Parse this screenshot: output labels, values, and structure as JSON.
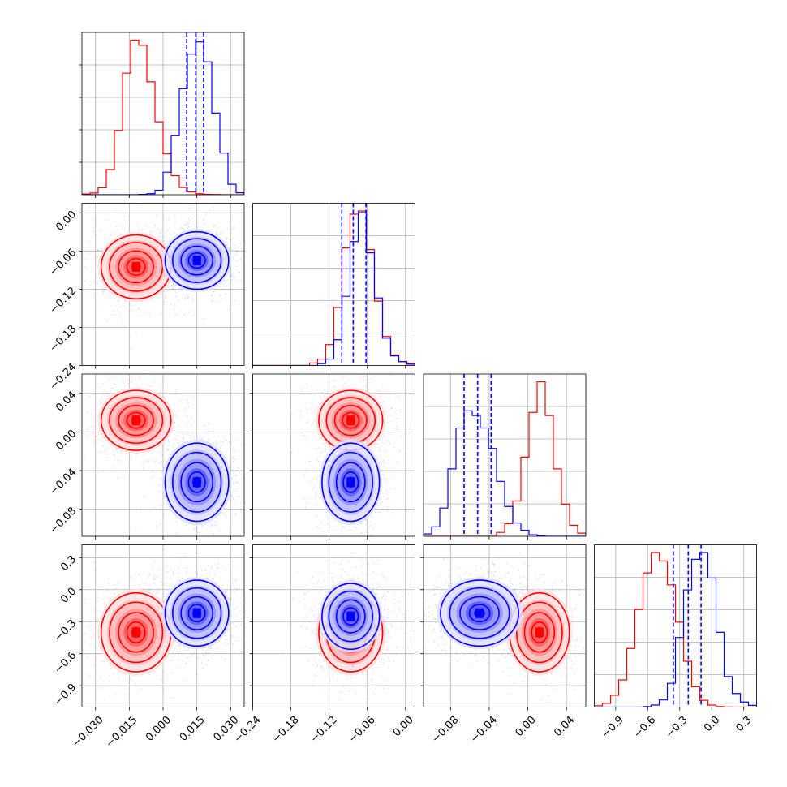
{
  "chart_data": {
    "type": "corner",
    "series": [
      {
        "color": "#ff0000",
        "histograms": [
          [
            4,
            10,
            40,
            145,
            370,
            700,
            890,
            860,
            650,
            420,
            235,
            110,
            42,
            16,
            6,
            2,
            1,
            0,
            0,
            0
          ],
          [
            0,
            0,
            0,
            0,
            0,
            0,
            0,
            15,
            40,
            130,
            360,
            730,
            940,
            960,
            720,
            400,
            180,
            65,
            25,
            12
          ],
          [
            0,
            0,
            0,
            0,
            0,
            0,
            0,
            0,
            0,
            25,
            80,
            225,
            505,
            790,
            985,
            770,
            430,
            205,
            70,
            20
          ],
          [
            8,
            22,
            70,
            160,
            345,
            575,
            790,
            910,
            860,
            720,
            500,
            270,
            120,
            40,
            12,
            3,
            1,
            0,
            0,
            0
          ]
        ],
        "centers": {
          "0-1": [
            -0.012,
            -0.085
          ],
          "0-2": [
            -0.012,
            0.012
          ],
          "0-3": [
            -0.012,
            -0.4
          ],
          "1-2": [
            -0.086,
            0.012
          ],
          "1-3": [
            -0.086,
            -0.4
          ],
          "2-3": [
            0.012,
            -0.4
          ]
        }
      },
      {
        "color": "#0000ff",
        "histograms": [
          [
            0,
            0,
            0,
            0,
            0,
            0,
            0,
            2,
            6,
            26,
            130,
            340,
            610,
            810,
            880,
            765,
            470,
            240,
            60,
            11
          ],
          [
            0,
            0,
            0,
            0,
            0,
            0,
            0,
            0,
            12,
            40,
            160,
            430,
            770,
            950,
            700,
            420,
            170,
            60,
            24,
            8
          ],
          [
            15,
            60,
            180,
            430,
            690,
            800,
            770,
            690,
            560,
            350,
            190,
            85,
            38,
            10,
            3,
            0,
            0,
            0,
            0,
            0
          ],
          [
            0,
            0,
            0,
            0,
            0,
            0,
            3,
            12,
            42,
            140,
            410,
            690,
            870,
            910,
            760,
            440,
            180,
            80,
            30,
            10
          ]
        ],
        "centers": {
          "0-1": [
            0.015,
            -0.075
          ],
          "0-2": [
            0.015,
            -0.052
          ],
          "0-3": [
            0.015,
            -0.22
          ],
          "1-2": [
            -0.086,
            -0.052
          ],
          "1-3": [
            -0.086,
            -0.25
          ],
          "2-3": [
            -0.05,
            -0.22
          ]
        }
      }
    ],
    "quantile_lines": [
      [
        0.0105,
        0.0145,
        0.018
      ],
      [
        -0.1,
        -0.082,
        -0.062
      ],
      [
        -0.066,
        -0.052,
        -0.038
      ],
      [
        -0.36,
        -0.22,
        -0.1
      ]
    ],
    "ranges": [
      [
        -0.036,
        0.036
      ],
      [
        -0.24,
        0.015
      ],
      [
        -0.108,
        0.06
      ],
      [
        -1.1,
        0.42
      ]
    ],
    "x_ticks": [
      [
        -0.03,
        -0.015,
        0.0,
        0.015,
        0.03
      ],
      [
        -0.24,
        -0.18,
        -0.12,
        -0.06,
        0.0
      ],
      [
        -0.08,
        -0.04,
        0.0,
        0.04
      ],
      [
        -0.9,
        -0.6,
        -0.3,
        0.0,
        0.3
      ]
    ],
    "x_tick_labels": [
      [
        "−0.030",
        "−0.015",
        "0.000",
        "0.015",
        "0.030"
      ],
      [
        "−0.24",
        "−0.18",
        "−0.12",
        "−0.06",
        "0.00"
      ],
      [
        "−0.08",
        "−0.04",
        "0.00",
        "0.04"
      ],
      [
        "−0.9",
        "−0.6",
        "−0.3",
        "0.0",
        "0.3"
      ]
    ],
    "y_ticks": [
      [],
      [
        0.0,
        -0.06,
        -0.12,
        -0.18,
        -0.24
      ],
      [
        0.04,
        0.0,
        -0.04,
        -0.08
      ],
      [
        0.3,
        0.0,
        -0.3,
        -0.6,
        -0.9
      ]
    ],
    "y_tick_labels": [
      [],
      [
        "0.00",
        "−0.06",
        "−0.12",
        "−0.18",
        "−0.24"
      ],
      [
        "0.04",
        "0.00",
        "−0.04",
        "−0.08"
      ],
      [
        "0.3",
        "0.0",
        "−0.3",
        "−0.6",
        "−0.9"
      ]
    ],
    "grid": true
  }
}
